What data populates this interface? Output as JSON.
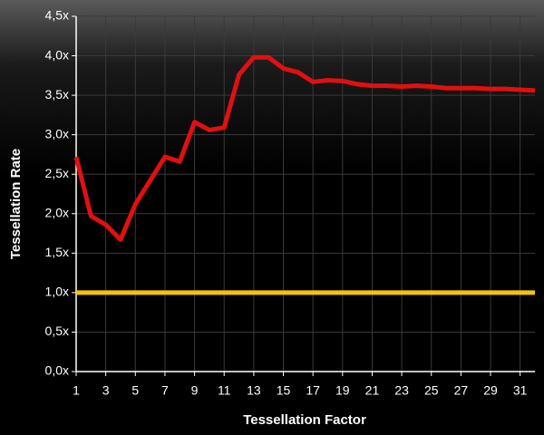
{
  "chart_data": {
    "type": "line",
    "y_label": "Tessellation Rate",
    "x_label": "Tessellation Factor",
    "x": [
      1,
      2,
      3,
      4,
      5,
      6,
      7,
      8,
      9,
      10,
      11,
      12,
      13,
      14,
      15,
      16,
      17,
      18,
      19,
      20,
      21,
      22,
      23,
      24,
      25,
      26,
      27,
      28,
      29,
      30,
      31,
      32
    ],
    "series": [
      {
        "color": "#e01010",
        "values": [
          2.72,
          1.97,
          1.86,
          1.67,
          2.12,
          2.42,
          2.72,
          2.66,
          3.16,
          3.06,
          3.09,
          3.76,
          3.98,
          3.98,
          3.84,
          3.79,
          3.67,
          3.69,
          3.68,
          3.64,
          3.62,
          3.62,
          3.61,
          3.62,
          3.61,
          3.59,
          3.59,
          3.59,
          3.58,
          3.58,
          3.57,
          3.56
        ]
      },
      {
        "color": "#f5c400",
        "values": [
          1,
          1,
          1,
          1,
          1,
          1,
          1,
          1,
          1,
          1,
          1,
          1,
          1,
          1,
          1,
          1,
          1,
          1,
          1,
          1,
          1,
          1,
          1,
          1,
          1,
          1,
          1,
          1,
          1,
          1,
          1,
          1
        ]
      }
    ],
    "xlim": [
      1,
      32
    ],
    "xticks": [
      1,
      3,
      5,
      7,
      9,
      11,
      13,
      15,
      17,
      19,
      21,
      23,
      25,
      27,
      29,
      31
    ],
    "ylim": [
      0,
      4.5
    ],
    "yticks": [
      {
        "value": 0,
        "label": "0,0x"
      },
      {
        "value": 0.5,
        "label": "0,5x"
      },
      {
        "value": 1,
        "label": "1,0x"
      },
      {
        "value": 1.5,
        "label": "1,5x"
      },
      {
        "value": 2,
        "label": "2,0x"
      },
      {
        "value": 2.5,
        "label": "2,5x"
      },
      {
        "value": 3,
        "label": "3,0x"
      },
      {
        "value": 3.5,
        "label": "3,5x"
      },
      {
        "value": 4,
        "label": "4,0x"
      },
      {
        "value": 4.5,
        "label": "4,5x"
      }
    ],
    "grid": true
  }
}
